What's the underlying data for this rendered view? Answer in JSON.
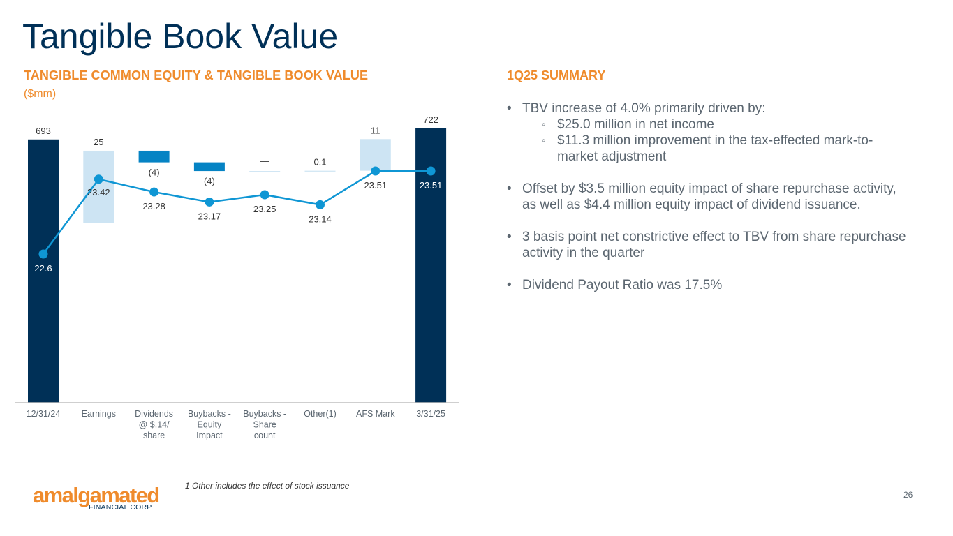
{
  "title": "Tangible Book Value",
  "chart_heading": "TANGIBLE COMMON EQUITY & TANGIBLE BOOK VALUE",
  "chart_subheading": "($mm)",
  "chart_data": {
    "type": "bar",
    "subtype": "waterfall with line overlay",
    "categories": [
      "12/31/24",
      "Earnings",
      "Dividends @ $.14/ share",
      "Buybacks - Equity Impact",
      "Buybacks - Share count",
      "Other(1)",
      "AFS Mark",
      "3/31/25"
    ],
    "bars": [
      {
        "kind": "total",
        "start": 0,
        "end": 693,
        "label": "693"
      },
      {
        "kind": "increase",
        "start": 693,
        "end": 718,
        "label": "25"
      },
      {
        "kind": "decrease",
        "start": 718,
        "end": 714,
        "label": "(4)"
      },
      {
        "kind": "decrease",
        "start": 714,
        "end": 711,
        "label": "(4)"
      },
      {
        "kind": "neutral",
        "start": 711,
        "end": 711,
        "label": "—"
      },
      {
        "kind": "increase",
        "start": 711,
        "end": 711.1,
        "label": "0.1"
      },
      {
        "kind": "increase",
        "start": 711.1,
        "end": 722,
        "label": "11"
      },
      {
        "kind": "total",
        "start": 0,
        "end": 722,
        "label": "722"
      }
    ],
    "line_series": {
      "name": "Tangible Book Value per share",
      "values": [
        22.6,
        23.42,
        23.28,
        23.17,
        23.25,
        23.14,
        23.51,
        23.51
      ],
      "labels": [
        "22.6",
        "23.42",
        "23.28",
        "23.17",
        "23.25",
        "23.14",
        "23.51",
        "23.51"
      ]
    },
    "colors": {
      "total": "#003057",
      "increase": "#cde4f3",
      "decrease": "#0583c4",
      "line": "#0f96d4",
      "axis": "#bfbfbf"
    }
  },
  "summary": {
    "heading": "1Q25 SUMMARY",
    "bullets": [
      {
        "text": "TBV increase of 4.0% primarily driven by:",
        "sub": [
          "$25.0 million in net income",
          "$11.3 million improvement in the tax-effected mark-to-market adjustment"
        ]
      },
      {
        "text": "Offset by $3.5 million equity impact of share repurchase activity, as well as $4.4 million equity impact of dividend issuance."
      },
      {
        "text": "3 basis point net constrictive effect to TBV from share repurchase activity in the quarter"
      },
      {
        "text": "Dividend Payout Ratio was 17.5%"
      }
    ]
  },
  "footnote": "1 Other includes the effect of stock issuance",
  "logo": {
    "wordmark": "amalgamated",
    "subtext": "FINANCIAL CORP."
  },
  "page_number": "26"
}
